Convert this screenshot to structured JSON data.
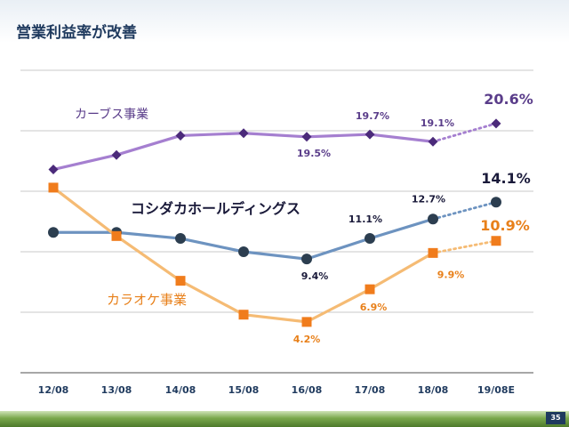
{
  "slide": {
    "title": "営業利益率が改善",
    "page_number": "35"
  },
  "colors": {
    "curves": "#a57fd0",
    "curves_marker": "#4b2a7a",
    "curves_label": "#5a3d8a",
    "holdings": "#6d93c0",
    "holdings_marker": "#2c3e50",
    "holdings_label": "#1a1a3a",
    "karaoke": "#f5bb74",
    "karaoke_marker": "#f07c1c",
    "karaoke_label": "#e8801a",
    "grid": "#c8c8c8",
    "axis_label": "#1f3a5e"
  },
  "chart_data": {
    "type": "line",
    "categories": [
      "12/08",
      "13/08",
      "14/08",
      "15/08",
      "16/08",
      "17/08",
      "18/08",
      "19/08E"
    ],
    "ylim": [
      0,
      25
    ],
    "grid": true,
    "last_point_dotted": true,
    "series": [
      {
        "key": "curves",
        "name": "カーブス事業",
        "values": [
          16.8,
          18.0,
          19.6,
          19.8,
          19.5,
          19.7,
          19.1,
          20.6
        ],
        "data_labels": [
          "",
          "",
          "",
          "",
          "19.5%",
          "19.7%",
          "19.1%",
          "20.6%"
        ],
        "marker": "diamond"
      },
      {
        "key": "holdings",
        "name": "コシダカホールディングス",
        "values": [
          11.6,
          11.6,
          11.1,
          10.0,
          9.4,
          11.1,
          12.7,
          14.1
        ],
        "data_labels": [
          "",
          "",
          "",
          "",
          "9.4%",
          "11.1%",
          "12.7%",
          "14.1%"
        ],
        "marker": "circle"
      },
      {
        "key": "karaoke",
        "name": "カラオケ事業",
        "values": [
          15.3,
          11.3,
          7.6,
          4.8,
          4.2,
          6.9,
          9.9,
          10.9
        ],
        "data_labels": [
          "",
          "",
          "",
          "",
          "4.2%",
          "6.9%",
          "9.9%",
          "10.9%"
        ],
        "marker": "square"
      }
    ]
  }
}
